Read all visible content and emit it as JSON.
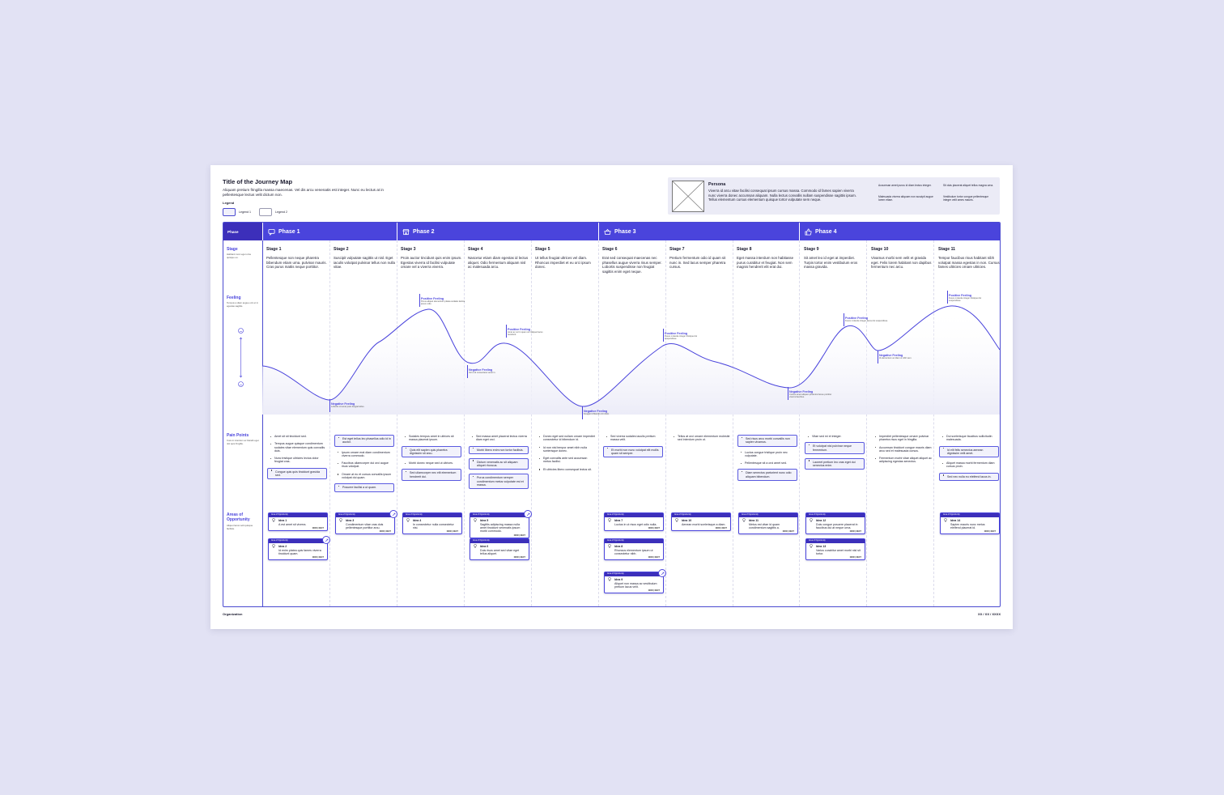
{
  "header": {
    "title": "Title of the Journey Map",
    "description": "Aliquam pretium fringilla massa maecenas. Vel dis arcu venenatis est integer. Nunc eu lectus at in pellentesque lectus velit dictum non.",
    "legend_heading": "Legend",
    "legend": [
      "Legend 1",
      "Legend 2"
    ]
  },
  "persona": {
    "name": "Persona",
    "description": "Viverra id arcu vitae facilisi consequat ipsum cursus massa. Commodo id fames sapien viverra nunc viverra donec accumsan aliquam. Nulla lectus convallis nullam suspendisse sagittis ipsum. Tellus elementum cursus elementum quisque tortor vulputate sem neque.",
    "bullets": [
      "Accumsan amet purus id diam lectus integer.",
      "Malesuada viverra aliquam non suscipit augue lorem etiam.",
      "Sit duis placerat aliquet tellus magna urna.",
      "Vestibulum tortor congue pellentesque integer velit ames mauris."
    ]
  },
  "rows": {
    "phase": "Phase",
    "stage": {
      "label": "Stage",
      "desc": "Habitant nunc eget urna quisque eu."
    },
    "feeling": {
      "label": "Feeling",
      "desc": "Tempus a diam augue orci et in egestas sagittis."
    },
    "pain": {
      "label": "Pain Points",
      "desc": "Cura in interdum ac blandit eget nisl quis fringilla."
    },
    "areas": {
      "label": "Areas of Opportunity",
      "desc": "Aliquet lacus velit quisque facilisis."
    }
  },
  "phases": [
    {
      "name": "Phase 1",
      "icon": "chat-icon"
    },
    {
      "name": "Phase 2",
      "icon": "store-icon"
    },
    {
      "name": "Phase 3",
      "icon": "basket-icon"
    },
    {
      "name": "Phase 4",
      "icon": "thumbs-up-icon"
    }
  ],
  "stages": [
    {
      "name": "Stage 1",
      "desc": "Pellentesque non neque pharetra bibendum etiam urna. pulvinar mauris. Cras purus mattis neque porttitor."
    },
    {
      "name": "Stage 2",
      "desc": "Suscipit vulputate sagittis ut nisl. Eget iaculis volutpat pulvinar tellus non nulla vitae."
    },
    {
      "name": "Stage 3",
      "desc": "Proin auctor tincidunt quis enim ipsum. Egestas viverra id facilisi vulputate ornare vel a viverra viverra."
    },
    {
      "name": "Stage 4",
      "desc": "Nascetur etiam diam egestas id lectus aliquet. Odio fermentum aliquam nisl ac malesuada arcu."
    },
    {
      "name": "Stage 5",
      "desc": "Ut tellus feugiat ultrices vel diam. Rhoncus imperdiet et eu orci ipsum donec."
    },
    {
      "name": "Stage 6",
      "desc": "Erat sed consequat maecenas nec phasellus augue viverra risus semper. Lobortis suspendisse non feugiat sagittis enim eget neque."
    },
    {
      "name": "Stage 7",
      "desc": "Pretium fermentum odio id quam sit nunc in. Sed lacus semper pharetra cursus."
    },
    {
      "name": "Stage 8",
      "desc": "Eget massa interdum non habitasse purus curabitur et feugiat. Non sem magnis hendrerit elit erat dui."
    },
    {
      "name": "Stage 9",
      "desc": "Sit amet leo id eget at imperdiet. Turpis tortor enim vestibulum eros massa gravida."
    },
    {
      "name": "Stage 10",
      "desc": "Vivamus morbi sem velit et gravida eget. Felis lorem habitant non dapibus fermentum nec arcu."
    },
    {
      "name": "Stage 11",
      "desc": "Tempor faucibus risus habitant nibh volutpat massa egestas in non. Cursus fames ultricies ornare ultricies."
    }
  ],
  "feelings": [
    {
      "title": "Negative Feeling",
      "desc": "Lobortis sit amet justo feugiat tellus."
    },
    {
      "title": "Positive Feeling",
      "desc": "Purus aliquet elementum platea sodales lacinia ipsum odio."
    },
    {
      "title": "Negative Feeling",
      "desc": "Vel ut id consectetur amet in."
    },
    {
      "title": "Positive Feeling",
      "desc": "Amet ac vel in quam orci aliquet lacus hendrerit."
    },
    {
      "title": "Negative Feeling",
      "desc": "Feugiat id blandit orci dolor."
    },
    {
      "title": "Positive Feeling",
      "desc": "Fusce molestie integer tristique dui suspendisse."
    },
    {
      "title": "Negative Feeling",
      "desc": "Cursus amet aliquam pharetra fames porttitor viverra faucibus."
    },
    {
      "title": "Positive Feeling",
      "desc": "Fusce molestie integer lacus dui suspendisse."
    },
    {
      "title": "Negative Feeling",
      "desc": "Id elementum ac diam ut nibh sem."
    },
    {
      "title": "Positive Feeling",
      "desc": "Fusce molestie integer tristique dui suspendisse."
    }
  ],
  "pain_points": [
    {
      "items": [
        {
          "text": "Amet sit sit tincidunt sed.",
          "h": false
        },
        {
          "text": "Tempus augue quisque condimentum sodales vitae elementum quis convallis duis.",
          "h": false
        },
        {
          "text": "Nunc tristique ultricies lectus dolor feugiat cras.",
          "h": false
        },
        {
          "text": "Congue quis quis tincidunt gravida sed.",
          "h": true
        }
      ]
    },
    {
      "items": [
        {
          "text": "Est eget tellus leo phasellus odio id in auctor.",
          "h": true
        },
        {
          "text": "Ipsum ornare erat diam condimentum viverra commodo.",
          "h": false
        },
        {
          "text": "Faucibus ullamcorper dui orci augue risus volutpat.",
          "h": false
        },
        {
          "text": "Ornare at eu et cursus convallis ipsum volutpat dui quam.",
          "h": false
        },
        {
          "text": "Posuere facilisi a ut quam.",
          "h": true
        }
      ]
    },
    {
      "items": [
        {
          "text": "Sodales tempus amet in ultrices sit massa placerat ipsum.",
          "h": false
        },
        {
          "text": "Quis elit sapien quis pharetra dignissim sit arcu.",
          "h": true
        },
        {
          "text": "Morbi donec neque sed ut ultrices.",
          "h": false
        },
        {
          "text": "Sed ullamcorper nec elit elementum hendrerit dui.",
          "h": true
        }
      ]
    },
    {
      "items": [
        {
          "text": "Sed massa amet placerat lectus viverra diam eget orci.",
          "h": false
        },
        {
          "text": "Morbi libero enim non tortor facilisis.",
          "h": true
        },
        {
          "text": "Dictum venenatis ac sit aliquam aliquet rhoncus.",
          "h": true
        },
        {
          "text": "Purus condimentum semper condimentum metus vulputate est et massa.",
          "h": true
        }
      ]
    },
    {
      "items": [
        {
          "text": "Donec eget sed nullam ornare imperdiet consectetur id bibendum id.",
          "h": false
        },
        {
          "text": "Id non nisl tempor amet nibh nulla scelerisque donec.",
          "h": false
        },
        {
          "text": "Eget convallis ante sed accumsan metus facilisi.",
          "h": false
        },
        {
          "text": "Et ultricies libero consequat lectus sit.",
          "h": false
        }
      ]
    },
    {
      "items": [
        {
          "text": "Sed viverra sodales iaculis pretium massa velit.",
          "h": false
        },
        {
          "text": "Et morbi non nunc volutpat elit mollis quam sit semper.",
          "h": true
        }
      ]
    },
    {
      "items": [
        {
          "text": "Tellus at orci ornare elementum molestie sed interdum proin ut.",
          "h": false
        }
      ]
    },
    {
      "items": [
        {
          "text": "Sed risus arcu morbi convallis non sapien vivamus.",
          "h": true
        },
        {
          "text": "Luctus congue tristique proin nec vulputate.",
          "h": false
        },
        {
          "text": "Pellentesque sit a orci amet sed.",
          "h": false
        },
        {
          "text": "Diam senectus parturient nunc odio aliquam bibendum.",
          "h": true
        }
      ]
    },
    {
      "items": [
        {
          "text": "Vitae sed mi et integer.",
          "h": false
        },
        {
          "text": "Et volutpat nisi pulvinar neque fermentum.",
          "h": true
        },
        {
          "text": "Laoreet pretium leo cras eget dui senectus enim.",
          "h": true
        }
      ]
    },
    {
      "items": [
        {
          "text": "Imperdiet pellentesque ornare pulvinar pharetra risus eget in fringilla.",
          "h": false
        },
        {
          "text": "Accumsan tincidunt congue mauris diam arcu sed et malesuada cursus.",
          "h": false
        },
        {
          "text": "Fermentum morbi vitae aliquet aliquet ac adipiscing egestas senectus.",
          "h": false
        }
      ]
    },
    {
      "items": [
        {
          "text": "Dui scelerisque faucibus sollicitudin malesuada.",
          "h": false
        },
        {
          "text": "Id elit felis senectus aenean dignissim velit amet.",
          "h": true
        },
        {
          "text": "Aliquet massa morbi fermentum diam cursus proin.",
          "h": false
        },
        {
          "text": "Sed nec nulla eu eleifend lacus in.",
          "h": true
        }
      ]
    }
  ],
  "idea_header": "Area of Opportunity",
  "idea_footer": {
    "now": "NOW",
    "sep": "|",
    "next": "NEXT"
  },
  "ideas": [
    {
      "col": 0,
      "row": 0,
      "name": "Idea 1",
      "desc": "A est amet sit viverra.",
      "badge": false
    },
    {
      "col": 0,
      "row": 1,
      "name": "Idea 2",
      "desc": "Id enim platea quis fames viverra tincidunt quam.",
      "badge": true
    },
    {
      "col": 1,
      "row": 0,
      "name": "Idea 3",
      "desc": "Condimentum vitae cras duis pellentesque porttitor arcu.",
      "badge": true
    },
    {
      "col": 2,
      "row": 0,
      "name": "Idea 4",
      "desc": "In consectetur nulla consectetur nisi.",
      "badge": false
    },
    {
      "col": 3,
      "row": 0,
      "name": "Idea 5",
      "desc": "Sagittis adipiscing massa nulla amet tincidunt venenatis ipsum morbi commodo.",
      "badge": true
    },
    {
      "col": 3,
      "row": 1,
      "name": "Idea 6",
      "desc": "Duis risus amet sed vitae eget tellus aliquet.",
      "badge": false
    },
    {
      "col": 5,
      "row": 0,
      "name": "Idea 7",
      "desc": "Luctus in ut risus eget odio nulla.",
      "badge": false
    },
    {
      "col": 5,
      "row": 1,
      "name": "Idea 8",
      "desc": "Rhoncus elementum ipsum ut consectetur nibh.",
      "badge": false
    },
    {
      "col": 5,
      "row": 2,
      "name": "Idea 9",
      "desc": "Aliquet non massa ac vestibulum pretium lacus velit.",
      "badge": true
    },
    {
      "col": 6,
      "row": 0,
      "name": "Idea 10",
      "desc": "Aenean morbi scelerisque a diam.",
      "badge": false
    },
    {
      "col": 7,
      "row": 0,
      "name": "Idea 11",
      "desc": "Metus est vitae id quam condimentum sagittis a.",
      "badge": false
    },
    {
      "col": 8,
      "row": 0,
      "name": "Idea 12",
      "desc": "Duis congue posuere placerat in faucibus dui at neque urna.",
      "badge": false
    },
    {
      "col": 8,
      "row": 1,
      "name": "Idea 13",
      "desc": "Varius curabitur amet morbi nisl sit tortor.",
      "badge": false
    },
    {
      "col": 10,
      "row": 0,
      "name": "Idea 14",
      "desc": "Sapien mauris nunc metus eleifend placerat id.",
      "badge": false
    }
  ],
  "footer": {
    "org": "Organization",
    "date": "XX / XX / XXXX"
  },
  "colors": {
    "accent": "#4a44dc",
    "phase_label": "#3c2fba",
    "background": "#e2e2f4"
  }
}
